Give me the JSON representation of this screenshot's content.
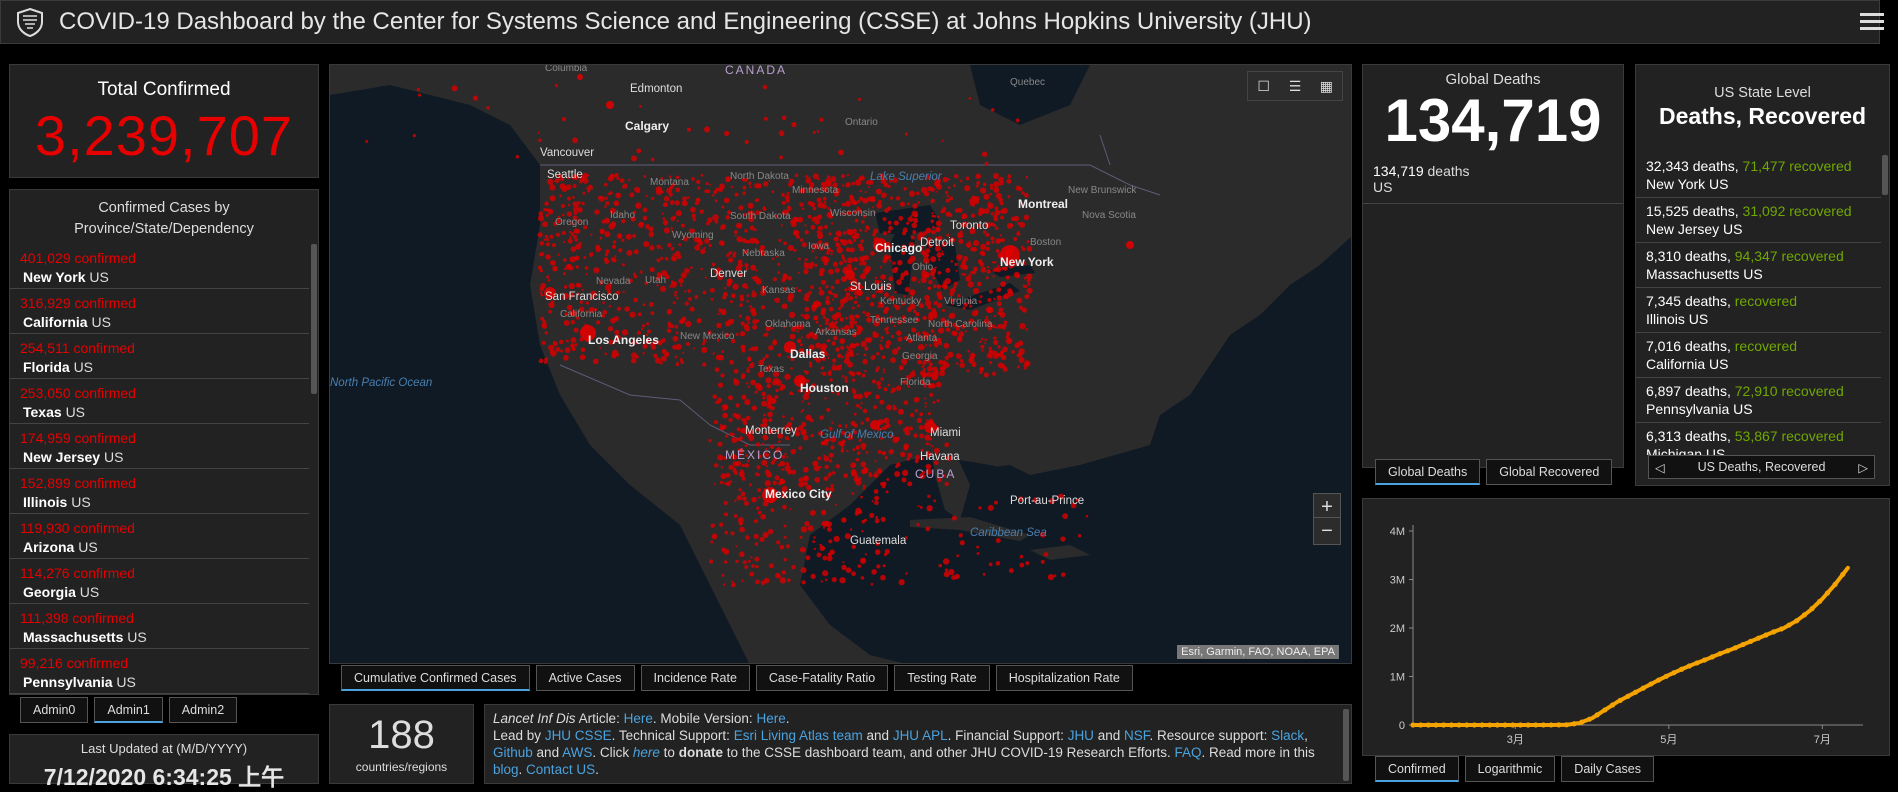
{
  "header": {
    "title": "COVID-19 Dashboard by the Center for Systems Science and Engineering (CSSE) at Johns Hopkins University (JHU)"
  },
  "total_confirmed": {
    "label": "Total Confirmed",
    "value": "3,239,707"
  },
  "confirmed_list": {
    "header": "Confirmed Cases by Province/State/Dependency",
    "items": [
      {
        "num": "401,029",
        "word": "confirmed",
        "name": "New York",
        "country": "US"
      },
      {
        "num": "316,929",
        "word": "confirmed",
        "name": "California",
        "country": "US"
      },
      {
        "num": "254,511",
        "word": "confirmed",
        "name": "Florida",
        "country": "US"
      },
      {
        "num": "253,050",
        "word": "confirmed",
        "name": "Texas",
        "country": "US"
      },
      {
        "num": "174,959",
        "word": "confirmed",
        "name": "New Jersey",
        "country": "US"
      },
      {
        "num": "152,899",
        "word": "confirmed",
        "name": "Illinois",
        "country": "US"
      },
      {
        "num": "119,930",
        "word": "confirmed",
        "name": "Arizona",
        "country": "US"
      },
      {
        "num": "114,276",
        "word": "confirmed",
        "name": "Georgia",
        "country": "US"
      },
      {
        "num": "111,398",
        "word": "confirmed",
        "name": "Massachusetts",
        "country": "US"
      },
      {
        "num": "99,216",
        "word": "confirmed",
        "name": "Pennsylvania",
        "country": "US"
      }
    ]
  },
  "admin_tabs": [
    "Admin0",
    "Admin1",
    "Admin2"
  ],
  "last_updated": {
    "label": "Last Updated at (M/D/YYYY)",
    "value": "7/12/2020 6:34:25 上午"
  },
  "map": {
    "tabs": [
      "Cumulative Confirmed Cases",
      "Active Cases",
      "Incidence Rate",
      "Case-Fatality Ratio",
      "Testing Rate",
      "Hospitalization Rate"
    ],
    "attribution": "Esri, Garmin, FAO, NOAA, EPA",
    "zoom_in": "+",
    "zoom_out": "−",
    "labels": {
      "canada": "CANADA",
      "mexico": "MÉXICO",
      "cuba": "CUBA",
      "edmonton": "Edmonton",
      "calgary": "Calgary",
      "vancouver": "Vancouver",
      "seattle": "Seattle",
      "quebec": "Quebec",
      "ontario": "Ontario",
      "montreal": "Montreal",
      "toronto": "Toronto",
      "chicago": "Chicago",
      "detroit": "Detroit",
      "newyork": "New York",
      "boston": "Boston",
      "denver": "Denver",
      "stlouis": "St Louis",
      "sanfrancisco": "San Francisco",
      "losangeles": "Los Angeles",
      "dallas": "Dallas",
      "houston": "Houston",
      "miami": "Miami",
      "monterrey": "Monterrey",
      "mexicocity": "Mexico City",
      "havana": "Havana",
      "portauprince": "Port-au-Prince",
      "guatemala": "Guatemala",
      "columbia": "Columbia",
      "montana": "Montana",
      "northdakota": "North Dakota",
      "southdakota": "South Dakota",
      "minnesota": "Minnesota",
      "wisconsin": "Wisconsin",
      "oregon": "Oregon",
      "idaho": "Idaho",
      "wyoming": "Wyoming",
      "nebraska": "Nebraska",
      "iowa": "Iowa",
      "nevada": "Nevada",
      "utah": "Utah",
      "california": "California",
      "kansas": "Kansas",
      "oklahoma": "Oklahoma",
      "arkansas": "Arkansas",
      "newmexico": "New Mexico",
      "texas": "Texas",
      "kentucky": "Kentucky",
      "virginia": "Virginia",
      "tennessee": "Tennessee",
      "northcarolina": "North Carolina",
      "georgia": "Georgia",
      "atlanta": "Atlanta",
      "florida": "Florida",
      "ohio": "Ohio",
      "newbrunswick": "New Brunswick",
      "novascotia": "Nova Scotia",
      "lakesuperior": "Lake Superior",
      "northpacific": "North Pacific Ocean",
      "gulfofmexico": "Gulf of Mexico",
      "caribbean": "Caribbean Sea"
    }
  },
  "countries_count": {
    "value": "188",
    "label": "countries/regions"
  },
  "info": {
    "article_label": "Lancet Inf Dis",
    "article_word": "Article:",
    "here1": "Here",
    "mobile": "Mobile Version:",
    "here2": "Here",
    "led_by": "Lead by",
    "jhu_csse": "JHU CSSE",
    "tech": "Technical Support:",
    "esri": "Esri Living Atlas team",
    "and1": "and",
    "jhu_apl": "JHU APL",
    "fin": "Financial Support:",
    "jhu": "JHU",
    "and2": "and",
    "nsf": "NSF",
    "res": "Resource support:",
    "slack": "Slack",
    "github": "Github",
    "and3": "and",
    "aws": "AWS",
    "click": "Click",
    "here3": "here",
    "to": "to",
    "donate": "donate",
    "rest": "to the CSSE dashboard team, and other JHU COVID-19 Research Efforts.",
    "faq": "FAQ",
    "readmore": "Read more in this",
    "blog": "blog",
    "contact": "Contact US"
  },
  "global_deaths": {
    "label": "Global Deaths",
    "value": "134,719",
    "entry_num": "134,719",
    "entry_word": "deaths",
    "entry_loc": "US",
    "tabs": [
      "Global Deaths",
      "Global Recovered"
    ]
  },
  "us_state": {
    "label": "US State Level",
    "title": "Deaths, Recovered",
    "rows": [
      {
        "deaths": "32,343",
        "recovered": "71,477",
        "loc": "New York US"
      },
      {
        "deaths": "15,525",
        "recovered": "31,092",
        "loc": "New Jersey US"
      },
      {
        "deaths": "8,310",
        "recovered": "94,347",
        "loc": "Massachusetts US"
      },
      {
        "deaths": "7,345",
        "recovered": "",
        "loc": "Illinois US"
      },
      {
        "deaths": "7,016",
        "recovered": "",
        "loc": "California US"
      },
      {
        "deaths": "6,897",
        "recovered": "72,910",
        "loc": "Pennsylvania US"
      },
      {
        "deaths": "6,313",
        "recovered": "53,867",
        "loc": "Michigan US"
      }
    ],
    "deaths_word": "deaths,",
    "recovered_word": "recovered",
    "nav_label": "US Deaths, Recovered"
  },
  "chart_data": {
    "type": "line",
    "title": "",
    "xlabel": "",
    "ylabel": "",
    "y_ticks": [
      "0",
      "1M",
      "2M",
      "3M",
      "4M"
    ],
    "x_ticks": [
      "3月",
      "5月",
      "7月"
    ],
    "ylim": [
      0,
      4000000
    ],
    "x_day_range": [
      0,
      172
    ],
    "x_tick_days": [
      40,
      100,
      160
    ],
    "series": [
      {
        "name": "Confirmed",
        "color": "#f5a300",
        "days": [
          0,
          20,
          40,
          55,
          60,
          65,
          70,
          75,
          80,
          85,
          90,
          95,
          100,
          105,
          110,
          115,
          120,
          125,
          130,
          135,
          140,
          145,
          150,
          155,
          160,
          165,
          170
        ],
        "values": [
          0,
          0,
          50,
          1000,
          4000,
          40000,
          140000,
          310000,
          480000,
          620000,
          760000,
          900000,
          1030000,
          1150000,
          1260000,
          1360000,
          1470000,
          1570000,
          1680000,
          1790000,
          1900000,
          2000000,
          2150000,
          2350000,
          2600000,
          2900000,
          3239707
        ]
      }
    ]
  },
  "chart_tabs": [
    "Confirmed",
    "Logarithmic",
    "Daily Cases"
  ]
}
